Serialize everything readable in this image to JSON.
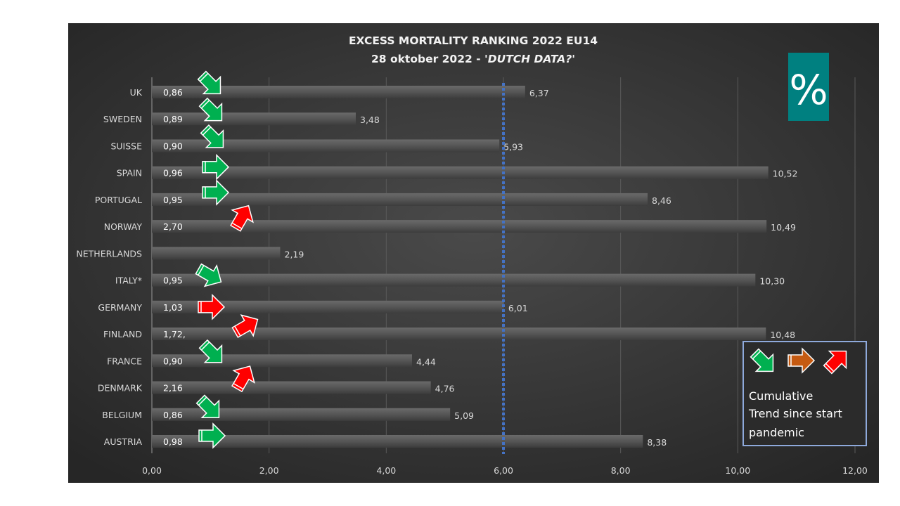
{
  "chart_data": {
    "type": "bar",
    "orientation": "horizontal",
    "title": "EXCESS  MORTALITY  RANKING  2022 EU14",
    "subtitle_prefix": "28 oktober  2022 - ",
    "subtitle_italic": "'DUTCH  DATA?'",
    "categories": [
      "UK",
      "SWEDEN",
      "SUISSE",
      "SPAIN",
      "PORTUGAL",
      "NORWAY",
      "NETHERLANDS",
      "ITALY*",
      "GERMANY",
      "FINLAND",
      "FRANCE",
      "DENMARK",
      "BELGIUM",
      "AUSTRIA"
    ],
    "values": [
      6.37,
      3.48,
      5.93,
      10.52,
      8.46,
      10.49,
      2.19,
      10.3,
      6.01,
      10.48,
      4.44,
      4.76,
      5.09,
      8.38
    ],
    "value_labels": [
      "6,37",
      "3,48",
      "5,93",
      "10,52",
      "8,46",
      "10,49",
      "2,19",
      "10,30",
      "6,01",
      "10,48",
      "4,44",
      "4,76",
      "5,09",
      "8,38"
    ],
    "trend_values": [
      "0,86",
      "0,89",
      "0,90",
      "0,96",
      "0,95",
      "2,70",
      "",
      "0,95",
      "1,03",
      "1,72,",
      "0,90",
      "2,16",
      "0,86",
      "0,98"
    ],
    "trend": [
      "down",
      "down",
      "down",
      "flat-green",
      "flat-green",
      "up",
      "",
      "down-slight",
      "flat-red",
      "up-slight",
      "down",
      "up",
      "down",
      "flat-green"
    ],
    "reference_line": 6.0,
    "xlim": [
      0,
      12
    ],
    "xticks": [
      "0,00",
      "2,00",
      "4,00",
      "6,00",
      "8,00",
      "10,00",
      "12,00"
    ],
    "grid": true,
    "legend_placement": "bottom-right"
  },
  "badge": {
    "symbol": "%",
    "color": "#008080"
  },
  "legend": {
    "text_line1": "Cumulative",
    "text_line2": "Trend since start",
    "text_line3": "pandemic"
  },
  "colors": {
    "green": "#00B050",
    "orange": "#C55A11",
    "red": "#FF0000",
    "ref_line": "#4472C4",
    "bar": "#555555"
  }
}
